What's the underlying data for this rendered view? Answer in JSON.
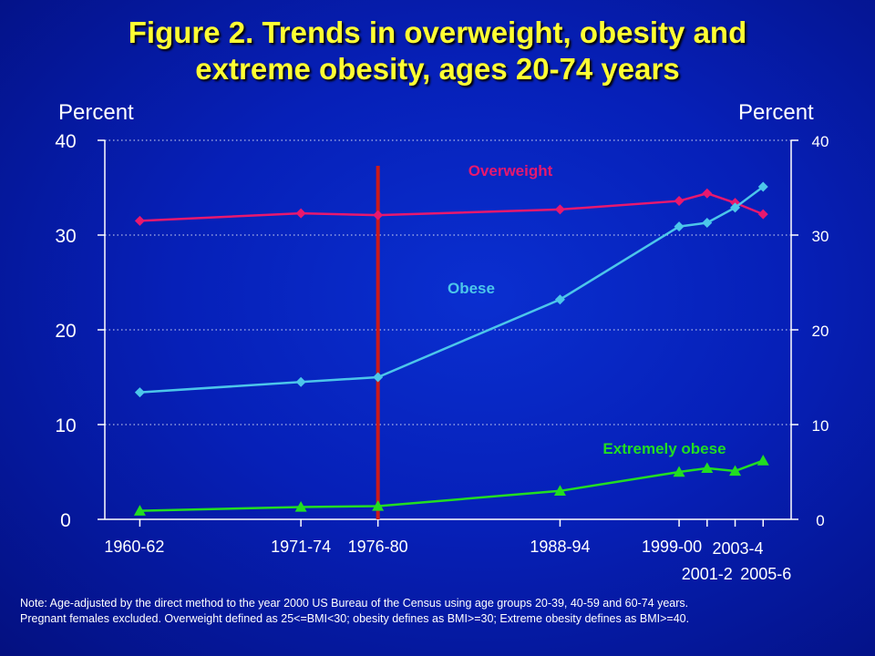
{
  "title_line1": "Figure 2. Trends in overweight, obesity and",
  "title_line2": "extreme obesity, ages 20-74 years",
  "ylabel_left": "Percent",
  "ylabel_right": "Percent",
  "note_line1": "Note: Age-adjusted by the direct method to the year 2000 US Bureau of the Census using age groups 20-39, 40-59 and 60-74 years.",
  "note_line2": "Pregnant females excluded. Overweight defined as 25<=BMI<30; obesity defines as BMI>=30; Extreme obesity defines as BMI>=40.",
  "colors": {
    "overweight": "#e8186e",
    "obese": "#4cc6ea",
    "extremely_obese": "#22dd22",
    "marker_line": "#cc1a1a",
    "axis": "#ffffff",
    "text": "#ffffff",
    "title": "#ffff33"
  },
  "chart_data": {
    "type": "line",
    "title": "Figure 2. Trends in overweight, obesity and extreme obesity, ages 20-74 years",
    "ylabel": "Percent",
    "ylim": [
      0,
      40
    ],
    "yticks": [
      0,
      10,
      20,
      30,
      40
    ],
    "grid": "horizontal dotted",
    "x": [
      1961,
      1972.5,
      1978,
      1991,
      1999.5,
      2001.5,
      2003.5,
      2005.5
    ],
    "xtick_labels": [
      "1960-62",
      "1971-74",
      "1976-80",
      "1988-94",
      "1999-00",
      "2001-2",
      "2003-4",
      "2005-6"
    ],
    "vertical_marker_x": 1978,
    "series": [
      {
        "name": "Overweight",
        "marker": "diamond",
        "values": [
          31.5,
          32.3,
          32.1,
          32.7,
          33.6,
          34.4,
          33.4,
          32.2
        ]
      },
      {
        "name": "Obese",
        "marker": "diamond",
        "values": [
          13.4,
          14.5,
          15.0,
          23.2,
          30.9,
          31.3,
          32.9,
          35.1
        ]
      },
      {
        "name": "Extremely obese",
        "marker": "triangle",
        "values": [
          0.9,
          1.3,
          1.4,
          3.0,
          5.0,
          5.4,
          5.1,
          6.2
        ]
      }
    ]
  }
}
